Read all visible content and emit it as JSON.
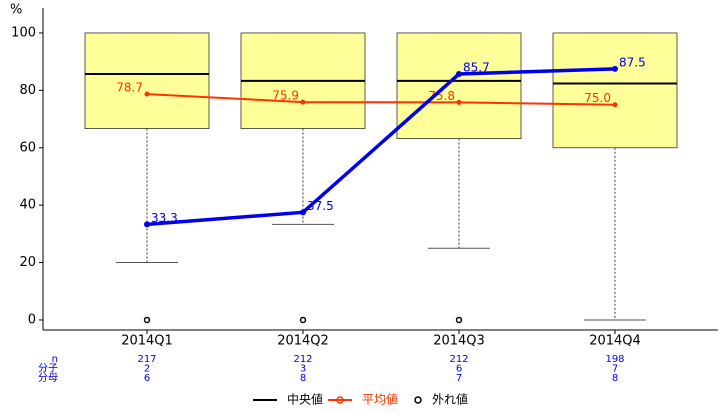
{
  "chart_data": {
    "type": "box",
    "y_label": "%",
    "categories": [
      "2014Q1",
      "2014Q2",
      "2014Q3",
      "2014Q4"
    ],
    "boxes": [
      {
        "low": 20,
        "q1": 66.7,
        "median": 85.7,
        "q3": 100,
        "high": 100,
        "outliers": [
          0
        ]
      },
      {
        "low": 33.3,
        "q1": 66.7,
        "median": 83.3,
        "q3": 100,
        "high": 100,
        "outliers": [
          0
        ]
      },
      {
        "low": 25,
        "q1": 63.2,
        "median": 83.3,
        "q3": 100,
        "high": 100,
        "outliers": [
          0
        ]
      },
      {
        "low": 0,
        "q1": 60,
        "median": 82.4,
        "q3": 100,
        "high": 100,
        "outliers": []
      }
    ],
    "box_color": "#ffff99",
    "median_name": "中央値",
    "outlier_name": "外れ値",
    "mean": {
      "name": "平均値",
      "color": "#ff3300",
      "values": [
        78.7,
        75.9,
        75.8,
        75.0
      ],
      "value_labels": [
        "78.7",
        "75.9",
        "75.8",
        "75.0"
      ]
    },
    "rate": {
      "color": "#0000ee",
      "values": [
        33.3,
        37.5,
        85.7,
        87.5
      ],
      "value_labels": [
        "33.3",
        "37.5",
        "85.7",
        "87.5"
      ]
    },
    "ylim": [
      -3.5,
      108.7
    ],
    "yticks": [
      0,
      20,
      40,
      60,
      80,
      100
    ],
    "table": {
      "row_labels": [
        "n",
        "分子",
        "分母"
      ],
      "rows": [
        [
          217,
          212,
          212,
          198
        ],
        [
          2,
          3,
          6,
          7
        ],
        [
          6,
          8,
          7,
          8
        ]
      ]
    }
  }
}
